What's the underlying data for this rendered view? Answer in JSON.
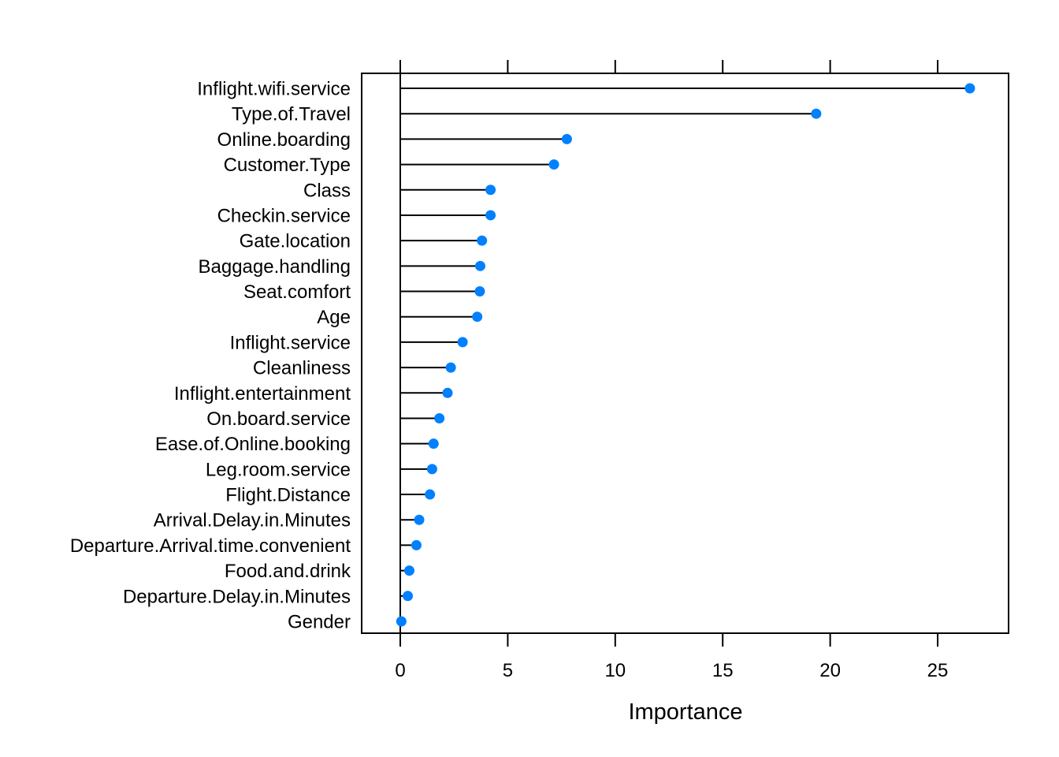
{
  "chart_data": {
    "type": "lollipop",
    "title": "",
    "xlabel": "Importance",
    "ylabel": "",
    "xlim": [
      -1.8,
      28.3
    ],
    "xticks": [
      0,
      5,
      10,
      15,
      20,
      25
    ],
    "xtick_labels": [
      "0",
      "5",
      "10",
      "15",
      "20",
      "25"
    ],
    "grid": false,
    "legend": null,
    "point_color": "#0080FF",
    "line_color": "#000000",
    "categories": [
      "Inflight.wifi.service",
      "Type.of.Travel",
      "Online.boarding",
      "Customer.Type",
      "Class",
      "Checkin.service",
      "Gate.location",
      "Baggage.handling",
      "Seat.comfort",
      "Age",
      "Inflight.service",
      "Cleanliness",
      "Inflight.entertainment",
      "On.board.service",
      "Ease.of.Online.booking",
      "Leg.room.service",
      "Flight.Distance",
      "Arrival.Delay.in.Minutes",
      "Departure.Arrival.time.convenient",
      "Food.and.drink",
      "Departure.Delay.in.Minutes",
      "Gender"
    ],
    "values": [
      26.5,
      19.35,
      7.75,
      7.15,
      4.2,
      4.2,
      3.8,
      3.72,
      3.7,
      3.58,
      2.9,
      2.35,
      2.2,
      1.82,
      1.55,
      1.48,
      1.38,
      0.88,
      0.75,
      0.42,
      0.35,
      0.05
    ]
  }
}
